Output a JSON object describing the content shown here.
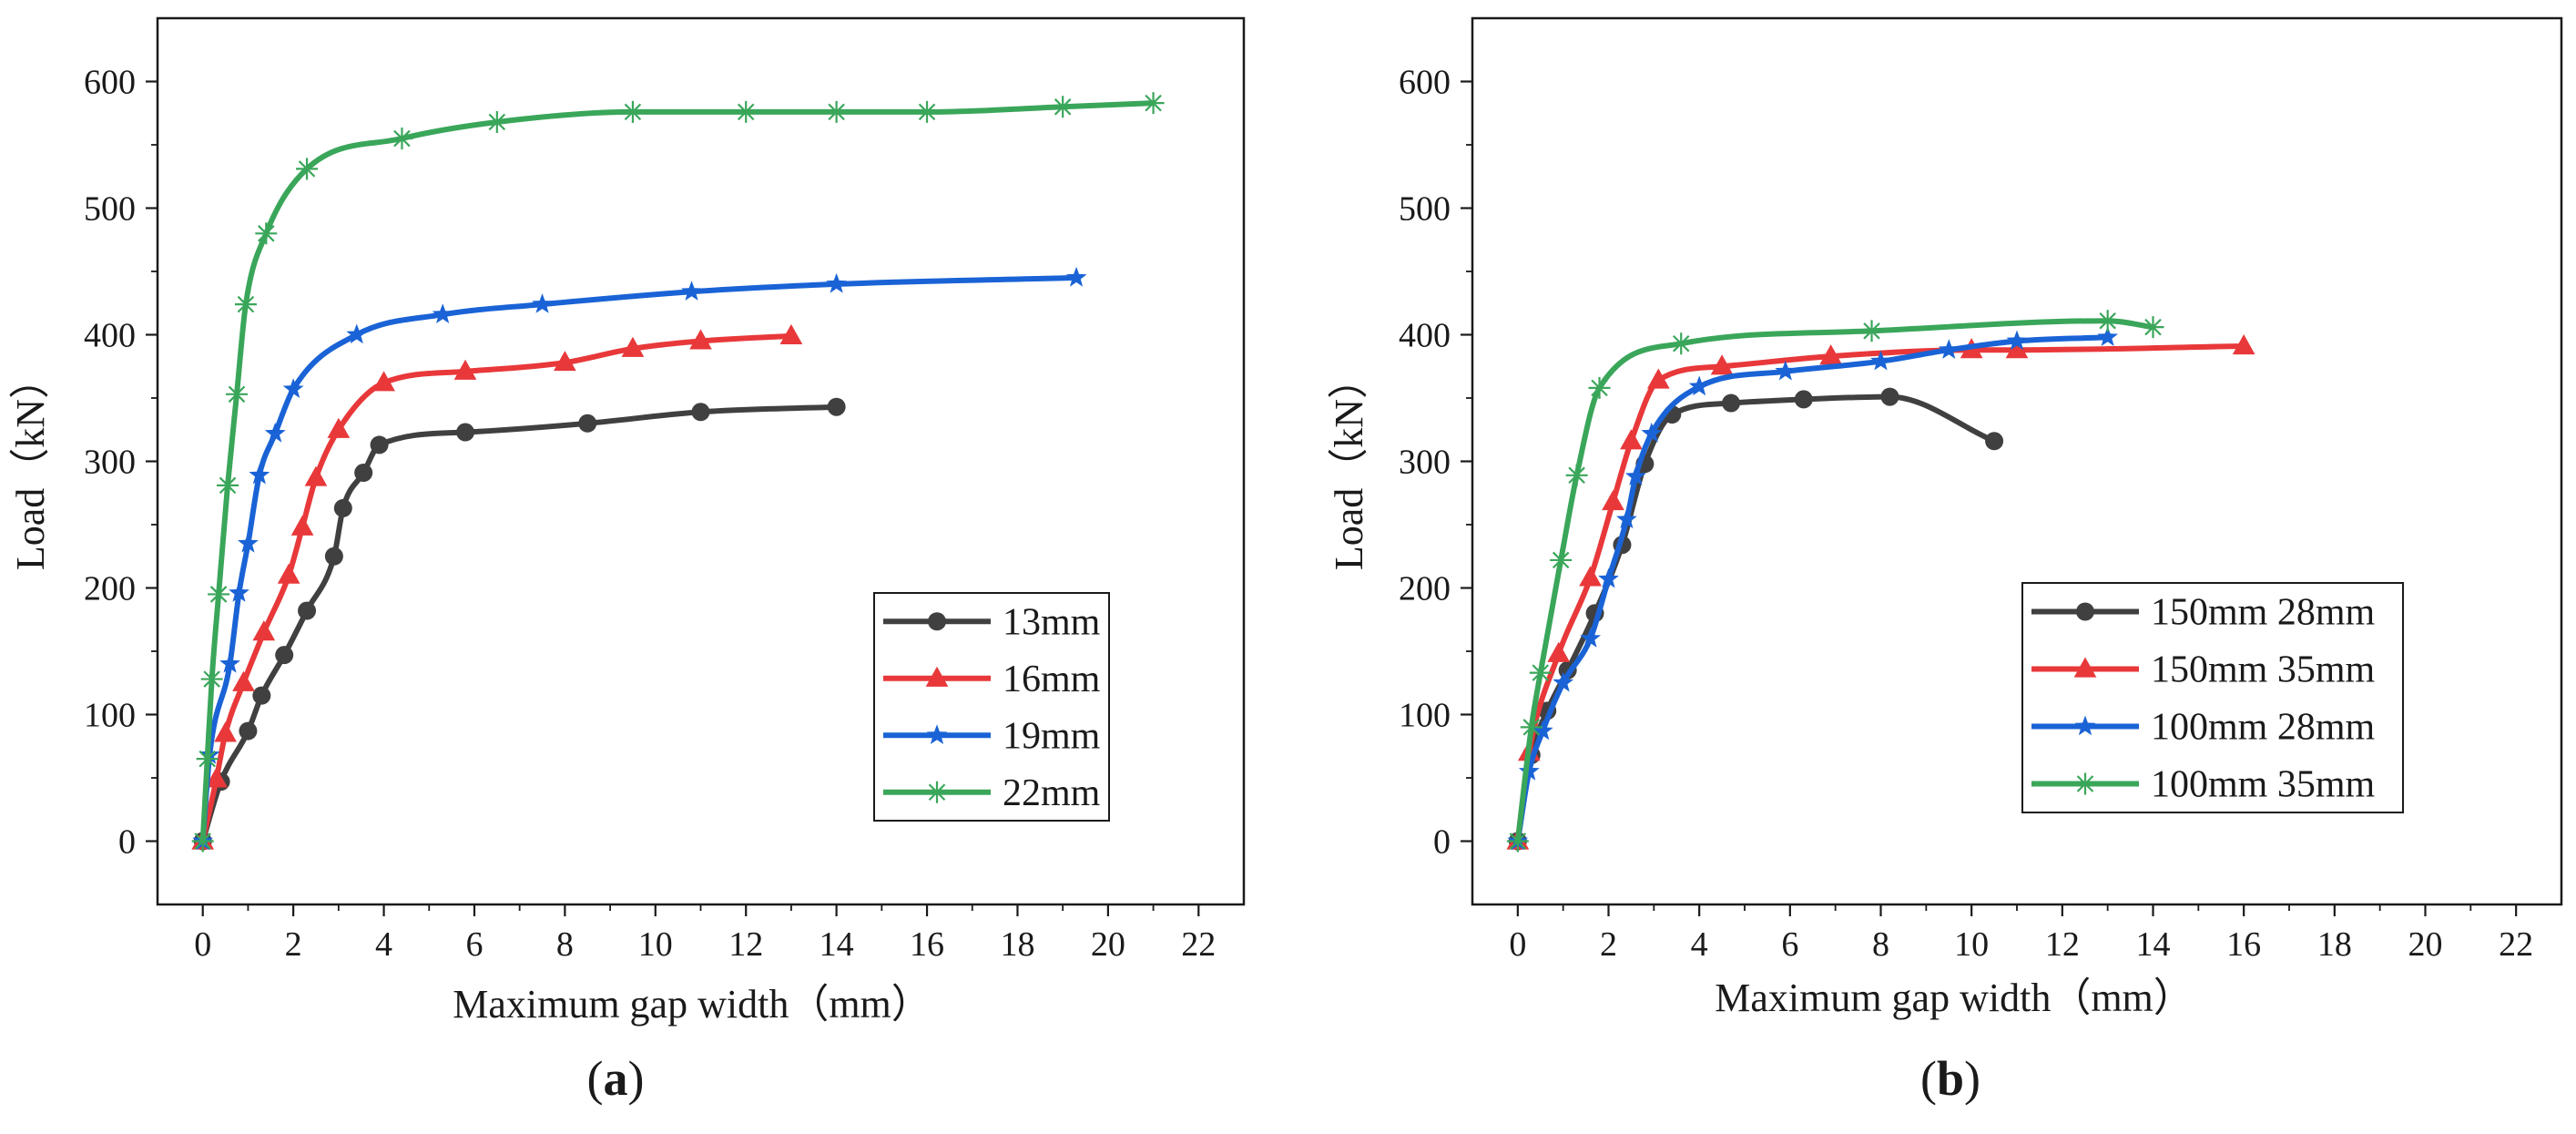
{
  "chart_data": [
    {
      "type": "line",
      "panel_label": "(a)",
      "panel_label_parts": [
        "(",
        "a",
        ")"
      ],
      "xlabel": "Maximum gap width（mm）",
      "ylabel": "Load（kN）",
      "xlim": [
        -1,
        23
      ],
      "ylim": [
        -50,
        650
      ],
      "xticks": [
        0,
        2,
        4,
        6,
        8,
        10,
        12,
        14,
        16,
        18,
        20,
        22
      ],
      "yticks": [
        0,
        100,
        200,
        300,
        400,
        500,
        600
      ],
      "legend_position": "lower-right",
      "grid": false,
      "series": [
        {
          "name": "13mm",
          "color": "#404040",
          "marker": "circle",
          "points": [
            [
              0,
              0
            ],
            [
              0.4,
              47
            ],
            [
              1,
              87
            ],
            [
              1.3,
              115
            ],
            [
              1.8,
              147
            ],
            [
              2.3,
              182
            ],
            [
              2.9,
              225
            ],
            [
              3.1,
              263
            ],
            [
              3.55,
              291
            ],
            [
              3.9,
              313
            ],
            [
              5.8,
              323
            ],
            [
              8.5,
              330
            ],
            [
              11,
              339
            ],
            [
              14,
              343
            ]
          ]
        },
        {
          "name": "16mm",
          "color": "#e8383a",
          "marker": "triangle",
          "points": [
            [
              0,
              0
            ],
            [
              0.3,
              49
            ],
            [
              0.5,
              85
            ],
            [
              0.9,
              125
            ],
            [
              1.35,
              165
            ],
            [
              1.9,
              210
            ],
            [
              2.2,
              248
            ],
            [
              2.5,
              287
            ],
            [
              3,
              325
            ],
            [
              4,
              362
            ],
            [
              5.8,
              371
            ],
            [
              8,
              378
            ],
            [
              9.5,
              389
            ],
            [
              11,
              395
            ],
            [
              13,
              399
            ]
          ]
        },
        {
          "name": "19mm",
          "color": "#1a63d6",
          "marker": "star",
          "points": [
            [
              0,
              0
            ],
            [
              0.15,
              68
            ],
            [
              0.6,
              140
            ],
            [
              0.8,
              196
            ],
            [
              1,
              235
            ],
            [
              1.25,
              289
            ],
            [
              1.6,
              322
            ],
            [
              2,
              357
            ],
            [
              3.4,
              400
            ],
            [
              5.3,
              416
            ],
            [
              7.5,
              424
            ],
            [
              10.8,
              434
            ],
            [
              14,
              440
            ],
            [
              19.3,
              445
            ]
          ]
        },
        {
          "name": "22mm",
          "color": "#3aa65a",
          "marker": "asterisk",
          "points": [
            [
              0,
              0
            ],
            [
              0.1,
              65
            ],
            [
              0.2,
              128
            ],
            [
              0.35,
              195
            ],
            [
              0.55,
              281
            ],
            [
              0.75,
              353
            ],
            [
              0.95,
              424
            ],
            [
              1.4,
              480
            ],
            [
              2.3,
              531
            ],
            [
              4.4,
              555
            ],
            [
              6.5,
              568
            ],
            [
              9.5,
              576
            ],
            [
              12,
              576
            ],
            [
              14,
              576
            ],
            [
              16,
              576
            ],
            [
              19,
              580
            ],
            [
              21,
              583
            ]
          ]
        }
      ]
    },
    {
      "type": "line",
      "panel_label": "(b)",
      "panel_label_parts": [
        "(",
        "b",
        ")"
      ],
      "xlabel": "Maximum gap width（mm）",
      "ylabel": "Load（kN）",
      "xlim": [
        -1,
        23
      ],
      "ylim": [
        -50,
        650
      ],
      "xticks": [
        0,
        2,
        4,
        6,
        8,
        10,
        12,
        14,
        16,
        18,
        20,
        22
      ],
      "yticks": [
        0,
        100,
        200,
        300,
        400,
        500,
        600
      ],
      "legend_position": "lower-right",
      "grid": false,
      "series": [
        {
          "name": "150mm 28mm",
          "color": "#404040",
          "marker": "circle",
          "points": [
            [
              0,
              0
            ],
            [
              0.3,
              68
            ],
            [
              0.65,
              103
            ],
            [
              1.1,
              135
            ],
            [
              1.7,
              180
            ],
            [
              2.3,
              234
            ],
            [
              2.8,
              298
            ],
            [
              3.4,
              337
            ],
            [
              4.7,
              346
            ],
            [
              6.3,
              349
            ],
            [
              8.2,
              351
            ],
            [
              10.5,
              316
            ]
          ]
        },
        {
          "name": "150mm 35mm",
          "color": "#e8383a",
          "marker": "triangle",
          "points": [
            [
              0,
              0
            ],
            [
              0.25,
              70
            ],
            [
              0.9,
              148
            ],
            [
              1.6,
              208
            ],
            [
              2.1,
              268
            ],
            [
              2.5,
              316
            ],
            [
              3.1,
              364
            ],
            [
              4.5,
              375
            ],
            [
              6.9,
              383
            ],
            [
              10,
              388
            ],
            [
              11,
              388
            ],
            [
              16,
              391
            ]
          ]
        },
        {
          "name": "100mm 28mm",
          "color": "#1a63d6",
          "marker": "star",
          "points": [
            [
              0,
              0
            ],
            [
              0.25,
              55
            ],
            [
              0.55,
              87
            ],
            [
              1,
              125
            ],
            [
              1.6,
              160
            ],
            [
              2,
              207
            ],
            [
              2.4,
              254
            ],
            [
              2.6,
              288
            ],
            [
              2.95,
              322
            ],
            [
              4,
              359
            ],
            [
              5.9,
              371
            ],
            [
              8,
              379
            ],
            [
              9.5,
              388
            ],
            [
              11,
              395
            ],
            [
              13,
              398
            ]
          ]
        },
        {
          "name": "100mm 35mm",
          "color": "#3aa65a",
          "marker": "asterisk",
          "points": [
            [
              0,
              0
            ],
            [
              0.3,
              90
            ],
            [
              0.5,
              133
            ],
            [
              0.95,
              222
            ],
            [
              1.3,
              289
            ],
            [
              1.8,
              358
            ],
            [
              3.6,
              393
            ],
            [
              7.8,
              403
            ],
            [
              13,
              411
            ],
            [
              14,
              406
            ]
          ]
        }
      ]
    }
  ]
}
